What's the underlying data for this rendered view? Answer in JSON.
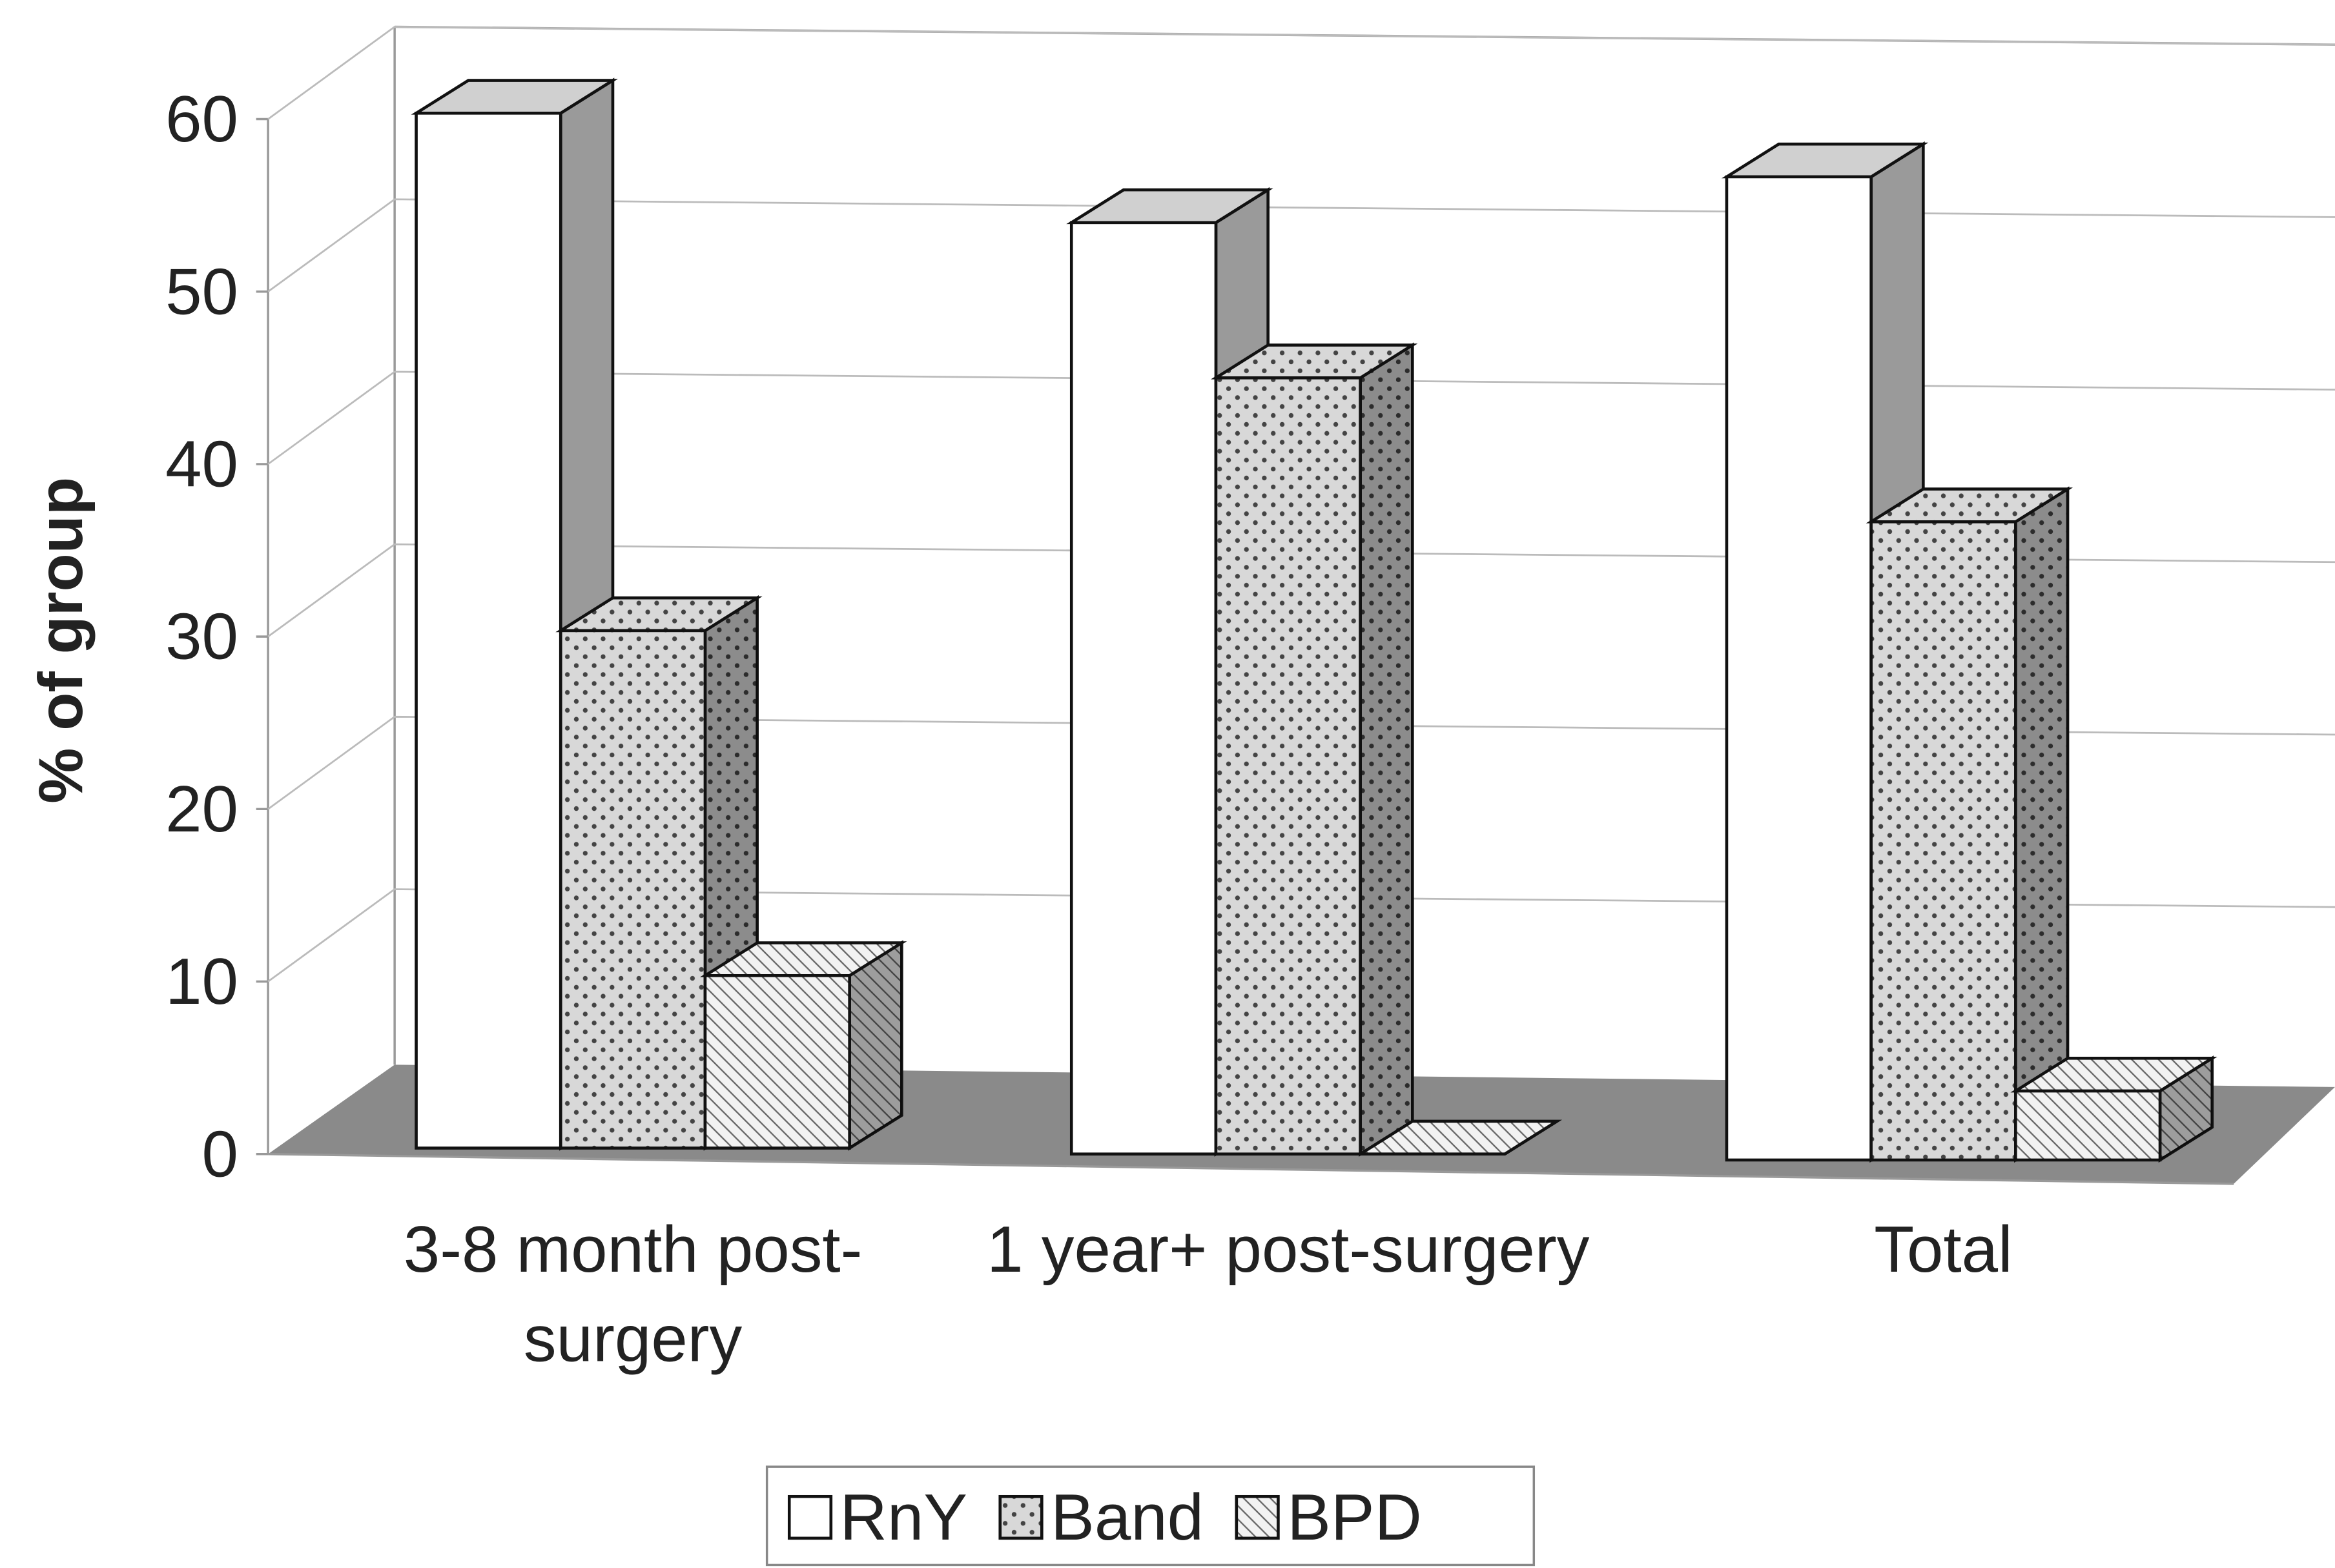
{
  "chart_data": {
    "type": "bar3d",
    "y_label": "% of group",
    "categories": [
      "3-8 month post-surgery",
      "1 year+ post-surgery",
      "Total"
    ],
    "series": [
      {
        "name": "RnY",
        "color": "#ffffff",
        "values": [
          60,
          54,
          57
        ]
      },
      {
        "name": "Band",
        "color": "#d4d4d4",
        "values": [
          30,
          45,
          37
        ]
      },
      {
        "name": "BPD",
        "color": "#ececec",
        "values": [
          10,
          0,
          4
        ]
      }
    ],
    "ylim": [
      0,
      60
    ],
    "yticks": [
      0,
      10,
      20,
      30,
      40,
      50,
      60
    ],
    "grid": true,
    "legend": "bottom"
  }
}
